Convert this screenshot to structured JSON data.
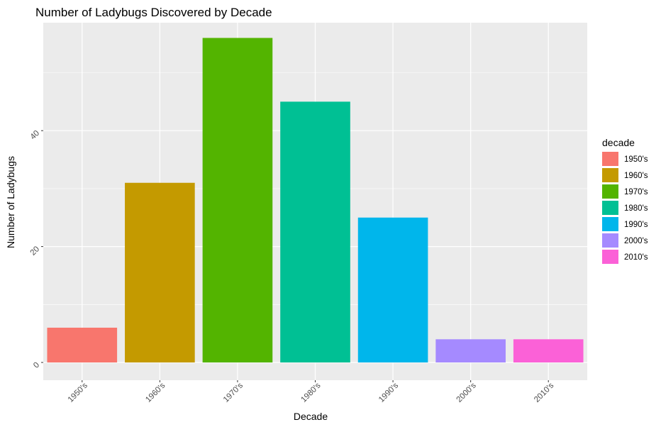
{
  "chart_data": {
    "type": "bar",
    "title": "Number of Ladybugs Discovered by Decade",
    "xlabel": "Decade",
    "ylabel": "Number of Ladybugs",
    "categories": [
      "1950's",
      "1960's",
      "1970's",
      "1980's",
      "1990's",
      "2000's",
      "2010's"
    ],
    "values": [
      6,
      31,
      56,
      45,
      25,
      4,
      4
    ],
    "colors": [
      "#F8766D",
      "#C49A00",
      "#53B400",
      "#00C094",
      "#00B6EB",
      "#A58AFF",
      "#FB61D7"
    ],
    "ylim": [
      0,
      58
    ],
    "yticks": [
      0,
      20,
      40
    ],
    "ytick_labels": [
      "0",
      "20",
      "40"
    ],
    "grid": true,
    "background": "#EBEBEB",
    "legend": {
      "title": "decade",
      "position": "right",
      "entries": [
        "1950's",
        "1960's",
        "1970's",
        "1980's",
        "1990's",
        "2000's",
        "2010's"
      ]
    }
  }
}
